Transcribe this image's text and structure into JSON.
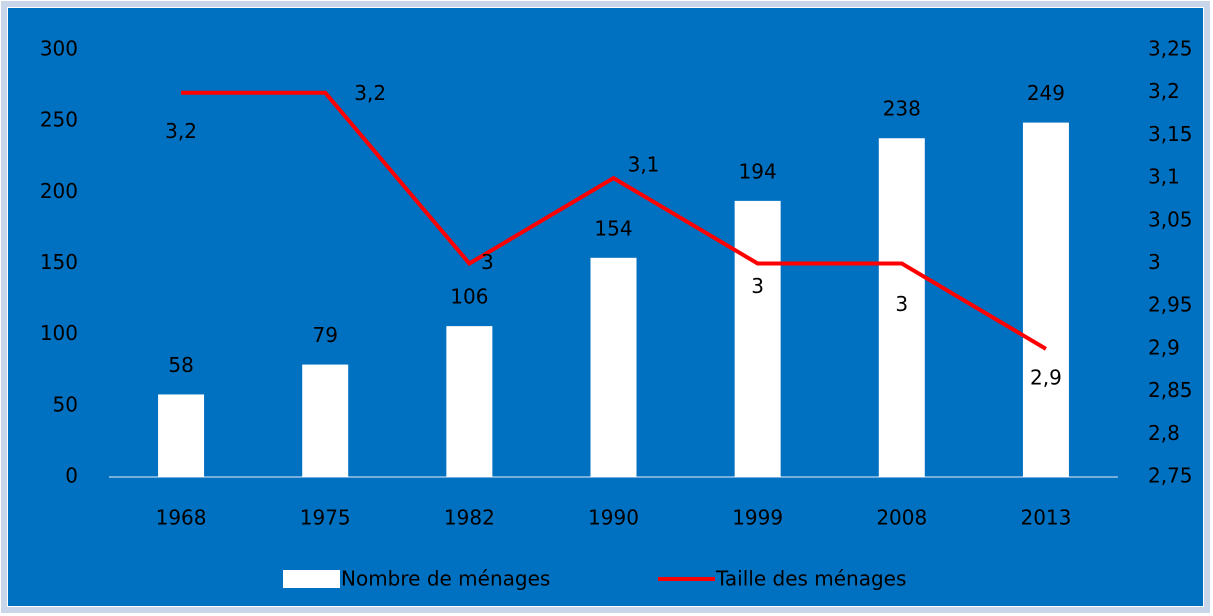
{
  "chart_data": {
    "type": "bar_line",
    "categories": [
      "1968",
      "1975",
      "1982",
      "1990",
      "1999",
      "2008",
      "2013"
    ],
    "series": [
      {
        "name": "Nombre de ménages",
        "color": "#ffffff",
        "type": "bar",
        "values": [
          58,
          79,
          106,
          154,
          194,
          238,
          249
        ]
      },
      {
        "name": "Taille des ménages",
        "color": "#ff0000",
        "type": "line",
        "axis": "y2",
        "values": [
          3.2,
          3.2,
          3,
          3.1,
          3,
          3,
          2.9
        ],
        "value_labels": [
          "3,2",
          "3,2",
          "3",
          "3,1",
          "3",
          "3",
          "2,9"
        ]
      }
    ],
    "ylim": [
      0,
      300
    ],
    "yticks": [
      0,
      50,
      100,
      150,
      200,
      250,
      300
    ],
    "y2lim": [
      2.75,
      3.25
    ],
    "y2ticks": [
      {
        "value": 2.75,
        "label": "2,75"
      },
      {
        "value": 2.8,
        "label": "2,8"
      },
      {
        "value": 2.85,
        "label": "2,85"
      },
      {
        "value": 2.9,
        "label": "2,9"
      },
      {
        "value": 2.95,
        "label": "2,95"
      },
      3,
      {
        "value": 3.05,
        "label": "3,05"
      },
      {
        "value": 3.1,
        "label": "3,1"
      },
      {
        "value": 3.15,
        "label": "3,15"
      },
      {
        "value": 3.2,
        "label": "3,2"
      },
      {
        "value": 3.25,
        "label": "3,25"
      }
    ],
    "legend": "bottom",
    "background": "#0070c0"
  }
}
